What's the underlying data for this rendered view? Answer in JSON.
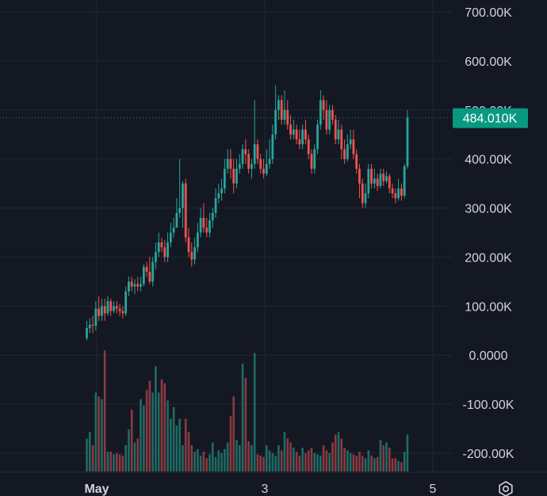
{
  "colors": {
    "background": "#141823",
    "grid": "#232733",
    "up": "#26a69a",
    "down": "#ef5350",
    "up_vol": "#1f6b63",
    "down_vol": "#8a3a41",
    "text": "#d1d4dc",
    "price_tag": "#089981"
  },
  "icons": {
    "settings": "settings-icon"
  },
  "chart_data": {
    "type": "candlestick",
    "price_axis": {
      "ticks": [
        700000,
        600000,
        500000,
        400000,
        300000,
        200000,
        100000,
        0,
        -100000,
        -200000
      ],
      "tick_labels": [
        "700.00K",
        "600.00K",
        "500.00K",
        "400.00K",
        "300.00K",
        "200.00K",
        "100.00K",
        "0.0000",
        "-100.00K",
        "-200.00K"
      ],
      "range": [
        -240000,
        745000
      ]
    },
    "time_axis": {
      "labels": [
        {
          "text": "May",
          "index": 0,
          "bold": true
        },
        {
          "text": "3",
          "index": 56,
          "bold": false
        },
        {
          "text": "5",
          "index": 110,
          "bold": false
        }
      ]
    },
    "last_price": {
      "label": "484.010K",
      "value": 484010
    },
    "volume_max": 1,
    "candles": [
      [
        35000,
        55000,
        70000,
        30000,
        0.25
      ],
      [
        55000,
        62000,
        75000,
        45000,
        0.3
      ],
      [
        62000,
        60000,
        80000,
        45000,
        0.2
      ],
      [
        60000,
        95000,
        110000,
        50000,
        0.6
      ],
      [
        95000,
        80000,
        120000,
        70000,
        0.57
      ],
      [
        80000,
        100000,
        115000,
        70000,
        0.55
      ],
      [
        100000,
        85000,
        115000,
        70000,
        0.92
      ],
      [
        85000,
        110000,
        120000,
        80000,
        0.15
      ],
      [
        110000,
        90000,
        115000,
        80000,
        0.15
      ],
      [
        90000,
        100000,
        110000,
        85000,
        0.13
      ],
      [
        100000,
        95000,
        110000,
        85000,
        0.14
      ],
      [
        95000,
        90000,
        105000,
        80000,
        0.13
      ],
      [
        90000,
        85000,
        100000,
        75000,
        0.12
      ],
      [
        85000,
        130000,
        140000,
        80000,
        0.2
      ],
      [
        130000,
        150000,
        160000,
        120000,
        0.32
      ],
      [
        150000,
        140000,
        160000,
        130000,
        0.47
      ],
      [
        140000,
        145000,
        155000,
        125000,
        0.22
      ],
      [
        145000,
        140000,
        160000,
        130000,
        0.25
      ],
      [
        140000,
        145000,
        160000,
        130000,
        0.55
      ],
      [
        145000,
        180000,
        185000,
        140000,
        0.5
      ],
      [
        180000,
        170000,
        190000,
        160000,
        0.62
      ],
      [
        170000,
        150000,
        200000,
        145000,
        0.69
      ],
      [
        150000,
        190000,
        200000,
        140000,
        0.6
      ],
      [
        190000,
        210000,
        230000,
        175000,
        0.8
      ],
      [
        210000,
        230000,
        250000,
        200000,
        0.6
      ],
      [
        230000,
        220000,
        240000,
        210000,
        0.7
      ],
      [
        220000,
        200000,
        235000,
        190000,
        0.67
      ],
      [
        200000,
        230000,
        250000,
        190000,
        0.54
      ],
      [
        230000,
        250000,
        270000,
        220000,
        0.4
      ],
      [
        250000,
        260000,
        280000,
        240000,
        0.49
      ],
      [
        260000,
        290000,
        320000,
        260000,
        0.35
      ],
      [
        290000,
        300000,
        400000,
        280000,
        0.4
      ],
      [
        300000,
        350000,
        355000,
        260000,
        0.2
      ],
      [
        350000,
        240000,
        360000,
        230000,
        0.4
      ],
      [
        240000,
        210000,
        260000,
        200000,
        0.3
      ],
      [
        210000,
        195000,
        230000,
        180000,
        0.2
      ],
      [
        195000,
        220000,
        240000,
        185000,
        0.15
      ],
      [
        220000,
        250000,
        270000,
        210000,
        0.17
      ],
      [
        250000,
        280000,
        300000,
        240000,
        0.12
      ],
      [
        280000,
        260000,
        310000,
        250000,
        0.15
      ],
      [
        260000,
        250000,
        280000,
        240000,
        0.1
      ],
      [
        250000,
        275000,
        290000,
        240000,
        0.13
      ],
      [
        275000,
        290000,
        300000,
        260000,
        0.22
      ],
      [
        290000,
        320000,
        340000,
        280000,
        0.11
      ],
      [
        320000,
        330000,
        350000,
        310000,
        0.16
      ],
      [
        330000,
        340000,
        360000,
        315000,
        0.14
      ],
      [
        340000,
        380000,
        400000,
        330000,
        0.17
      ],
      [
        380000,
        400000,
        420000,
        370000,
        0.22
      ],
      [
        400000,
        380000,
        420000,
        360000,
        0.42
      ],
      [
        380000,
        350000,
        400000,
        330000,
        0.57
      ],
      [
        350000,
        380000,
        400000,
        340000,
        0.24
      ],
      [
        380000,
        390000,
        410000,
        370000,
        0.2
      ],
      [
        390000,
        420000,
        430000,
        380000,
        0.82
      ],
      [
        420000,
        410000,
        440000,
        390000,
        0.71
      ],
      [
        410000,
        380000,
        420000,
        370000,
        0.23
      ],
      [
        380000,
        390000,
        400000,
        360000,
        0.2
      ],
      [
        390000,
        430000,
        520000,
        380000,
        0.9
      ],
      [
        430000,
        400000,
        440000,
        390000,
        0.13
      ],
      [
        400000,
        380000,
        410000,
        370000,
        0.12
      ],
      [
        380000,
        370000,
        400000,
        360000,
        0.11
      ],
      [
        370000,
        390000,
        420000,
        365000,
        0.2
      ],
      [
        390000,
        400000,
        440000,
        380000,
        0.16
      ],
      [
        400000,
        450000,
        470000,
        390000,
        0.14
      ],
      [
        450000,
        500000,
        550000,
        440000,
        0.12
      ],
      [
        500000,
        520000,
        530000,
        480000,
        0.2
      ],
      [
        520000,
        480000,
        530000,
        470000,
        0.16
      ],
      [
        480000,
        500000,
        540000,
        470000,
        0.3
      ],
      [
        500000,
        470000,
        520000,
        460000,
        0.25
      ],
      [
        470000,
        450000,
        490000,
        440000,
        0.22
      ],
      [
        450000,
        460000,
        480000,
        440000,
        0.18
      ],
      [
        460000,
        440000,
        470000,
        430000,
        0.15
      ],
      [
        440000,
        430000,
        460000,
        420000,
        0.12
      ],
      [
        430000,
        460000,
        470000,
        420000,
        0.18
      ],
      [
        460000,
        440000,
        480000,
        430000,
        0.14
      ],
      [
        440000,
        410000,
        450000,
        400000,
        0.16
      ],
      [
        410000,
        380000,
        420000,
        370000,
        0.18
      ],
      [
        380000,
        420000,
        430000,
        370000,
        0.14
      ],
      [
        420000,
        470000,
        480000,
        410000,
        0.13
      ],
      [
        470000,
        520000,
        540000,
        460000,
        0.12
      ],
      [
        520000,
        500000,
        530000,
        480000,
        0.2
      ],
      [
        500000,
        460000,
        520000,
        450000,
        0.16
      ],
      [
        460000,
        500000,
        510000,
        450000,
        0.14
      ],
      [
        500000,
        480000,
        510000,
        470000,
        0.22
      ],
      [
        480000,
        440000,
        490000,
        430000,
        0.28
      ],
      [
        440000,
        460000,
        480000,
        430000,
        0.3
      ],
      [
        460000,
        420000,
        470000,
        400000,
        0.25
      ],
      [
        420000,
        400000,
        440000,
        390000,
        0.18
      ],
      [
        400000,
        430000,
        450000,
        395000,
        0.16
      ],
      [
        430000,
        440000,
        460000,
        420000,
        0.14
      ],
      [
        440000,
        410000,
        460000,
        400000,
        0.13
      ],
      [
        410000,
        380000,
        420000,
        370000,
        0.12
      ],
      [
        380000,
        350000,
        390000,
        320000,
        0.15
      ],
      [
        350000,
        310000,
        360000,
        300000,
        0.12
      ],
      [
        310000,
        330000,
        350000,
        300000,
        0.1
      ],
      [
        330000,
        380000,
        390000,
        320000,
        0.16
      ],
      [
        380000,
        350000,
        390000,
        340000,
        0.12
      ],
      [
        350000,
        360000,
        380000,
        340000,
        0.1
      ],
      [
        360000,
        345000,
        370000,
        335000,
        0.11
      ],
      [
        345000,
        370000,
        380000,
        340000,
        0.24
      ],
      [
        370000,
        355000,
        380000,
        345000,
        0.2
      ],
      [
        355000,
        365000,
        375000,
        350000,
        0.22
      ],
      [
        365000,
        340000,
        370000,
        330000,
        0.18
      ],
      [
        340000,
        330000,
        350000,
        320000,
        0.1
      ],
      [
        330000,
        320000,
        340000,
        310000,
        0.1
      ],
      [
        320000,
        340000,
        360000,
        315000,
        0.08
      ],
      [
        340000,
        325000,
        350000,
        315000,
        0.07
      ],
      [
        325000,
        385000,
        390000,
        320000,
        0.15
      ],
      [
        385000,
        484010,
        500000,
        380000,
        0.28
      ]
    ]
  }
}
